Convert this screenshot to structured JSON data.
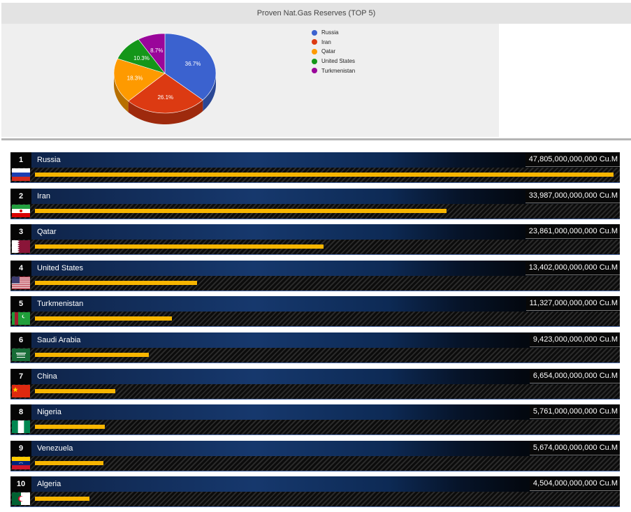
{
  "chart_data": [
    {
      "type": "pie",
      "title": "Proven Nat.Gas Reserves (TOP 5)",
      "categories": [
        "Russia",
        "Iran",
        "Qatar",
        "United States",
        "Turkmenistan"
      ],
      "values": [
        36.7,
        26.1,
        18.3,
        10.3,
        8.7
      ],
      "labels": [
        "36.7%",
        "26.1%",
        "18.3%",
        "10.3%",
        "8.7%"
      ],
      "colors": [
        "#3b62cf",
        "#dc3a12",
        "#fe9a00",
        "#149619",
        "#9a069a"
      ],
      "legend_position": "right"
    },
    {
      "type": "bar",
      "title": "",
      "unit": "Cu.M",
      "categories": [
        "Russia",
        "Iran",
        "Qatar",
        "United States",
        "Turkmenistan",
        "Saudi Arabia",
        "China",
        "Nigeria",
        "Venezuela",
        "Algeria"
      ],
      "ranks": [
        "1",
        "2",
        "3",
        "4",
        "5",
        "6",
        "7",
        "8",
        "9",
        "10"
      ],
      "values": [
        47805000000000,
        33987000000000,
        23861000000000,
        13402000000000,
        11327000000000,
        9423000000000,
        6654000000000,
        5761000000000,
        5674000000000,
        4504000000000
      ],
      "value_labels": [
        "47,805,000,000,000 Cu.M",
        "33,987,000,000,000 Cu.M",
        "23,861,000,000,000 Cu.M",
        "13,402,000,000,000 Cu.M",
        "11,327,000,000,000 Cu.M",
        "9,423,000,000,000 Cu.M",
        "6,654,000,000,000 Cu.M",
        "5,761,000,000,000 Cu.M",
        "5,674,000,000,000 Cu.M",
        "4,504,000,000,000 Cu.M"
      ],
      "flags": [
        "russia-flag",
        "iran-flag",
        "qatar-flag",
        "united-states-flag",
        "turkmenistan-flag",
        "saudi-arabia-flag",
        "china-flag",
        "nigeria-flag",
        "venezuela-flag",
        "algeria-flag"
      ],
      "bar_color": "#f7b500"
    }
  ]
}
